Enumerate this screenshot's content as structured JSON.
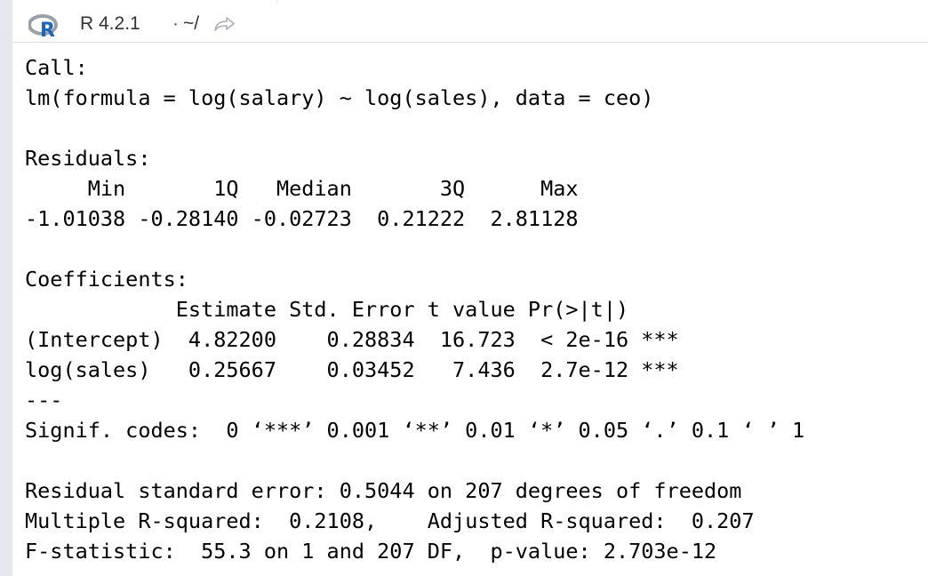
{
  "console_header": {
    "title": "R 4.2.1",
    "separator": "·",
    "path": "~/",
    "r_logo_icon": "r-logo-icon",
    "goto_icon": "arrow-goto-icon",
    "accent_blue": "#1f65b8",
    "logo_gray": "#9aa0a7"
  },
  "console": {
    "lines": [
      "Call:",
      "lm(formula = log(salary) ~ log(sales), data = ceo)",
      "",
      "Residuals:",
      "     Min       1Q   Median       3Q      Max ",
      "-1.01038 -0.28140 -0.02723  0.21222  2.81128 ",
      "",
      "Coefficients:",
      "            Estimate Std. Error t value Pr(>|t|)    ",
      "(Intercept)  4.82200    0.28834  16.723  < 2e-16 ***",
      "log(sales)   0.25667    0.03452   7.436  2.7e-12 ***",
      "---",
      "Signif. codes:  0 ‘***’ 0.001 ‘**’ 0.01 ‘*’ 0.05 ‘.’ 0.1 ‘ ’ 1",
      "",
      "Residual standard error: 0.5044 on 207 degrees of freedom",
      "Multiple R-squared:  0.2108,\tAdjusted R-squared:  0.207 ",
      "F-statistic:  55.3 on 1 and 207 DF,  p-value: 2.703e-12"
    ]
  }
}
